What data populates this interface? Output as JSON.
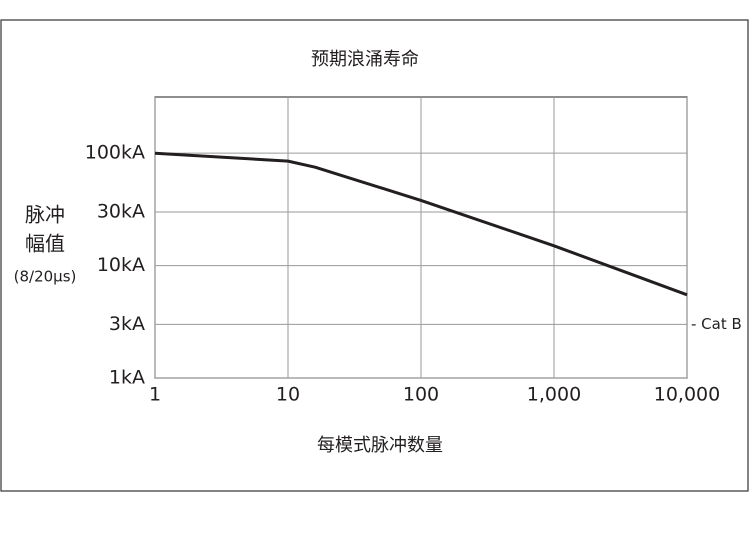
{
  "chart_data": {
    "type": "line",
    "title": "预期浪涌寿命",
    "x_label": "每模式脉冲数量",
    "y_label": [
      "脉冲",
      "幅值"
    ],
    "y_label_sub": "(8/20μs)",
    "annotation": "- Cat B",
    "x": [
      1,
      10,
      16,
      100,
      1000,
      10000
    ],
    "values": [
      100,
      85,
      75,
      38,
      15,
      5.5
    ],
    "color": "#231f20",
    "xscale": "log",
    "yscale": "log",
    "grid": true,
    "xlim": [
      1,
      10000
    ],
    "xticks": [
      1,
      10,
      100,
      {
        "value": 1000,
        "label": "1,000"
      },
      {
        "value": 10000,
        "label": "10,000"
      }
    ],
    "ylim": [
      1,
      316
    ],
    "yticks": [
      {
        "value": 1,
        "label": "1kA"
      },
      {
        "value": 3,
        "label": "3kA"
      },
      {
        "value": 10,
        "label": "10kA"
      },
      {
        "value": 30,
        "label": "30kA"
      },
      {
        "value": 100,
        "label": "100kA"
      }
    ]
  }
}
